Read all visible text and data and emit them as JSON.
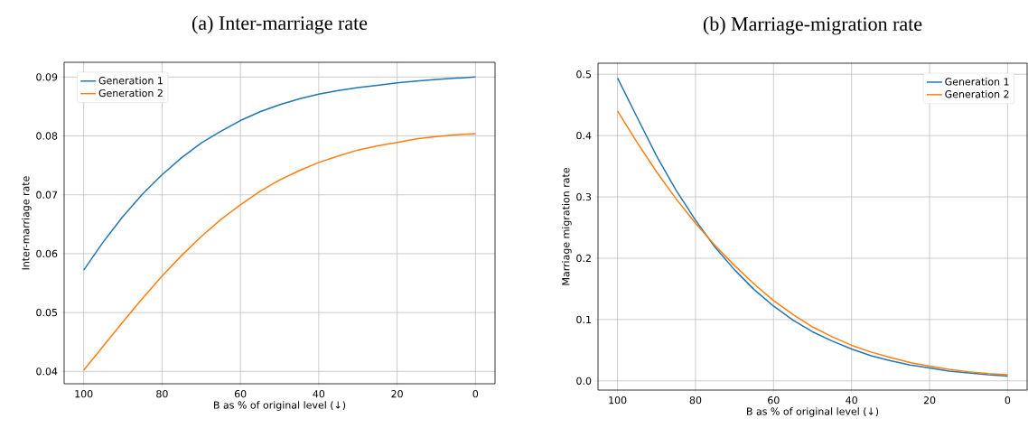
{
  "chart_data": [
    {
      "type": "line",
      "title": "(a) Inter-marriage rate",
      "xlabel": "B as % of original level (↓)",
      "ylabel": "Inter-marriage rate",
      "x": [
        100,
        95,
        90,
        85,
        80,
        75,
        70,
        65,
        60,
        55,
        50,
        45,
        40,
        35,
        30,
        25,
        20,
        15,
        10,
        5,
        0
      ],
      "series": [
        {
          "name": "Generation 1",
          "color": "#1f77b4",
          "values": [
            0.0572,
            0.062,
            0.0663,
            0.0701,
            0.0734,
            0.0763,
            0.0788,
            0.0808,
            0.0826,
            0.0841,
            0.0853,
            0.0863,
            0.0871,
            0.0877,
            0.0882,
            0.0886,
            0.089,
            0.0893,
            0.0896,
            0.0898,
            0.09
          ]
        },
        {
          "name": "Generation 2",
          "color": "#ff7f0e",
          "values": [
            0.0402,
            0.0443,
            0.0484,
            0.0524,
            0.0562,
            0.0597,
            0.0629,
            0.0658,
            0.0683,
            0.0706,
            0.0725,
            0.0741,
            0.0755,
            0.0766,
            0.0776,
            0.0783,
            0.0789,
            0.0795,
            0.0799,
            0.0802,
            0.0804
          ]
        }
      ],
      "xlim": [
        105,
        -5
      ],
      "ylim": [
        0.0379,
        0.0925
      ],
      "xticks": [
        100,
        80,
        60,
        40,
        20,
        0
      ],
      "yticks": [
        0.04,
        0.05,
        0.06,
        0.07,
        0.08,
        0.09
      ],
      "grid": true,
      "legend": "top left"
    },
    {
      "type": "line",
      "title": "(b) Marriage-migration rate",
      "xlabel": "B as % of original level (↓)",
      "ylabel": "Marriage migration rate",
      "x": [
        100,
        95,
        90,
        85,
        80,
        75,
        70,
        65,
        60,
        55,
        50,
        45,
        40,
        35,
        30,
        25,
        20,
        15,
        10,
        5,
        0
      ],
      "series": [
        {
          "name": "Generation 1",
          "color": "#1f77b4",
          "values": [
            0.494,
            0.43,
            0.367,
            0.311,
            0.262,
            0.218,
            0.181,
            0.149,
            0.122,
            0.099,
            0.08,
            0.065,
            0.052,
            0.041,
            0.033,
            0.026,
            0.021,
            0.016,
            0.013,
            0.01,
            0.008
          ]
        },
        {
          "name": "Generation 2",
          "color": "#ff7f0e",
          "values": [
            0.44,
            0.389,
            0.341,
            0.297,
            0.257,
            0.221,
            0.188,
            0.158,
            0.131,
            0.108,
            0.088,
            0.072,
            0.058,
            0.047,
            0.038,
            0.03,
            0.024,
            0.019,
            0.015,
            0.012,
            0.01
          ]
        }
      ],
      "xlim": [
        105,
        -5
      ],
      "ylim": [
        -0.015,
        0.518
      ],
      "xticks": [
        100,
        80,
        60,
        40,
        20,
        0
      ],
      "yticks": [
        {
          "value": 0,
          "label": "0.0"
        },
        0.1,
        0.2,
        0.3,
        0.4,
        0.5
      ],
      "grid": true,
      "legend": "top right"
    }
  ]
}
